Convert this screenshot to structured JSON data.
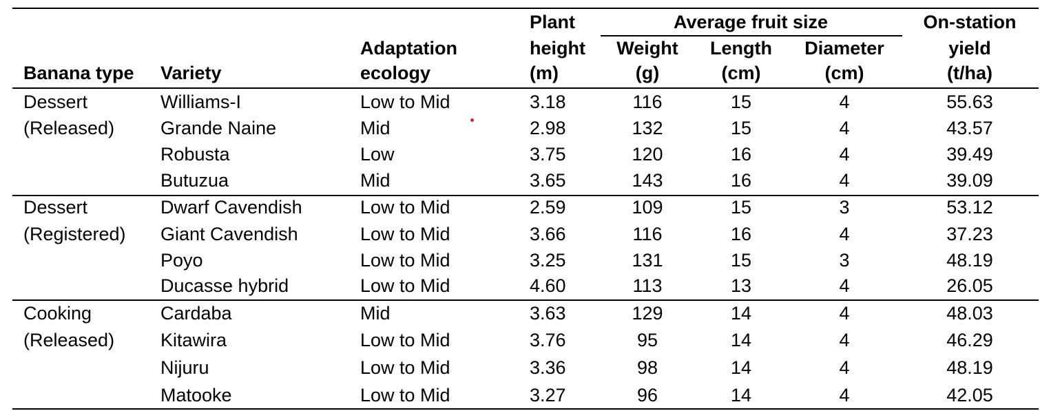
{
  "headers": {
    "banana_type": "Banana type",
    "variety": "Variety",
    "adaptation_line1": "Adaptation",
    "adaptation_line2": "ecology",
    "plant_height_line1": "Plant",
    "plant_height_line2": "height",
    "plant_height_line3": "(m)",
    "fruit_size_group": "Average fruit size",
    "weight_line1": "Weight",
    "weight_line2": "(g)",
    "length_line1": "Length",
    "length_line2": "(cm)",
    "diameter_line1": "Diameter",
    "diameter_line2": "(cm)",
    "yield_line1": "On-station",
    "yield_line2": "yield",
    "yield_line3": "(t/ha)"
  },
  "groups": [
    {
      "type_line1": "Dessert",
      "type_line2": "(Released)",
      "rows": [
        {
          "variety": "Williams-I",
          "ecology": "Low to Mid",
          "height": "3.18",
          "weight": "116",
          "length": "15",
          "diameter": "4",
          "yield": "55.63"
        },
        {
          "variety": "Grande Naine",
          "ecology": "Mid",
          "height": "2.98",
          "weight": "132",
          "length": "15",
          "diameter": "4",
          "yield": "43.57"
        },
        {
          "variety": "Robusta",
          "ecology": "Low",
          "height": "3.75",
          "weight": "120",
          "length": "16",
          "diameter": "4",
          "yield": "39.49"
        },
        {
          "variety": "Butuzua",
          "ecology": "Mid",
          "height": "3.65",
          "weight": "143",
          "length": "16",
          "diameter": "4",
          "yield": "39.09"
        }
      ]
    },
    {
      "type_line1": "Dessert",
      "type_line2": "(Registered)",
      "rows": [
        {
          "variety": "Dwarf Cavendish",
          "ecology": "Low to Mid",
          "height": "2.59",
          "weight": "109",
          "length": "15",
          "diameter": "3",
          "yield": "53.12"
        },
        {
          "variety": "Giant Cavendish",
          "ecology": "Low to Mid",
          "height": "3.66",
          "weight": "116",
          "length": "16",
          "diameter": "4",
          "yield": "37.23"
        },
        {
          "variety": "Poyo",
          "ecology": "Low to Mid",
          "height": "3.25",
          "weight": "131",
          "length": "15",
          "diameter": "3",
          "yield": "48.19"
        },
        {
          "variety": "Ducasse hybrid",
          "ecology": "Low to Mid",
          "height": "4.60",
          "weight": "113",
          "length": "13",
          "diameter": "4",
          "yield": "26.05"
        }
      ]
    },
    {
      "type_line1": "Cooking",
      "type_line2": "(Released)",
      "rows": [
        {
          "variety": "Cardaba",
          "ecology": "Mid",
          "height": "3.63",
          "weight": "129",
          "length": "14",
          "diameter": "4",
          "yield": "48.03"
        },
        {
          "variety": "Kitawira",
          "ecology": "Low to Mid",
          "height": "3.76",
          "weight": "95",
          "length": "14",
          "diameter": "4",
          "yield": "46.29"
        },
        {
          "variety": "Nijuru",
          "ecology": "Low to Mid",
          "height": "3.36",
          "weight": "98",
          "length": "14",
          "diameter": "4",
          "yield": "48.19"
        },
        {
          "variety": "Matooke",
          "ecology": "Low to Mid",
          "height": "3.27",
          "weight": "96",
          "length": "14",
          "diameter": "4",
          "yield": "42.05"
        }
      ]
    }
  ],
  "marker_color": "#e0202a"
}
